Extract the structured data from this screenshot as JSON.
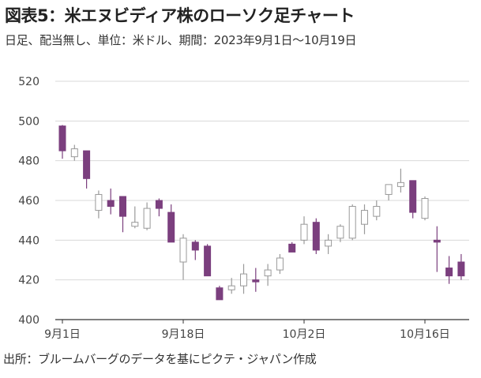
{
  "title": "図表5：米エヌビディア株のローソク足チャート",
  "subtitle": "日足、配当無し、単位：米ドル、期間：2023年9月1日～10月19日",
  "source": "出所：ブルームバーグのデータを基にピクテ・ジャパン作成",
  "colors": {
    "bearish_fill": "#7b3f7e",
    "bullish_fill": "#ffffff",
    "candle_stroke_bull": "#9a9a9a",
    "candle_stroke_bear": "#7b3f7e",
    "grid": "#d9d9d9",
    "axis": "#333333"
  },
  "chart_data": {
    "type": "candlestick",
    "title": "図表5：米エヌビディア株のローソク足チャート",
    "ylabel": "",
    "xlabel": "",
    "ylim": [
      400,
      520
    ],
    "yticks": [
      400,
      420,
      440,
      460,
      480,
      500,
      520
    ],
    "grid": "horizontal",
    "xtick_labels": [
      {
        "index": 0,
        "label": "9月1日"
      },
      {
        "index": 10,
        "label": "9月18日"
      },
      {
        "index": 20,
        "label": "10月2日"
      },
      {
        "index": 30,
        "label": "10月16日"
      }
    ],
    "candles": [
      {
        "o": 497.5,
        "h": 498,
        "l": 481,
        "c": 485
      },
      {
        "o": 482,
        "h": 488,
        "l": 480,
        "c": 486
      },
      {
        "o": 485,
        "h": 485,
        "l": 466,
        "c": 471
      },
      {
        "o": 455,
        "h": 465,
        "l": 451,
        "c": 463
      },
      {
        "o": 460,
        "h": 466,
        "l": 453,
        "c": 457
      },
      {
        "o": 462,
        "h": 462,
        "l": 444,
        "c": 452
      },
      {
        "o": 447,
        "h": 457,
        "l": 446,
        "c": 449
      },
      {
        "o": 446,
        "h": 459,
        "l": 445,
        "c": 456
      },
      {
        "o": 460,
        "h": 461,
        "l": 452,
        "c": 456
      },
      {
        "o": 454,
        "h": 458,
        "l": 439,
        "c": 439
      },
      {
        "o": 429,
        "h": 443,
        "l": 420,
        "c": 441
      },
      {
        "o": 439,
        "h": 440,
        "l": 430,
        "c": 435
      },
      {
        "o": 437,
        "h": 438,
        "l": 422,
        "c": 422
      },
      {
        "o": 416,
        "h": 417,
        "l": 410,
        "c": 410
      },
      {
        "o": 415,
        "h": 421,
        "l": 413,
        "c": 417
      },
      {
        "o": 417,
        "h": 428,
        "l": 413,
        "c": 423
      },
      {
        "o": 420,
        "h": 426,
        "l": 414,
        "c": 419
      },
      {
        "o": 422,
        "h": 428,
        "l": 417,
        "c": 425
      },
      {
        "o": 425,
        "h": 433,
        "l": 423,
        "c": 431
      },
      {
        "o": 438,
        "h": 439,
        "l": 434,
        "c": 434
      },
      {
        "o": 440,
        "h": 452,
        "l": 438,
        "c": 448
      },
      {
        "o": 449,
        "h": 451,
        "l": 433,
        "c": 435
      },
      {
        "o": 437,
        "h": 443,
        "l": 433,
        "c": 440
      },
      {
        "o": 441,
        "h": 448,
        "l": 439,
        "c": 447
      },
      {
        "o": 441,
        "h": 458,
        "l": 440,
        "c": 457
      },
      {
        "o": 448,
        "h": 458,
        "l": 443,
        "c": 455
      },
      {
        "o": 452,
        "h": 460,
        "l": 450,
        "c": 457
      },
      {
        "o": 463,
        "h": 468,
        "l": 460,
        "c": 468
      },
      {
        "o": 467,
        "h": 476,
        "l": 464,
        "c": 469
      },
      {
        "o": 470,
        "h": 470,
        "l": 451,
        "c": 454
      },
      {
        "o": 451,
        "h": 462,
        "l": 450,
        "c": 461
      },
      {
        "o": 440,
        "h": 447,
        "l": 424,
        "c": 439
      },
      {
        "o": 426,
        "h": 432,
        "l": 418,
        "c": 422
      },
      {
        "o": 429,
        "h": 433,
        "l": 420,
        "c": 422
      }
    ]
  }
}
